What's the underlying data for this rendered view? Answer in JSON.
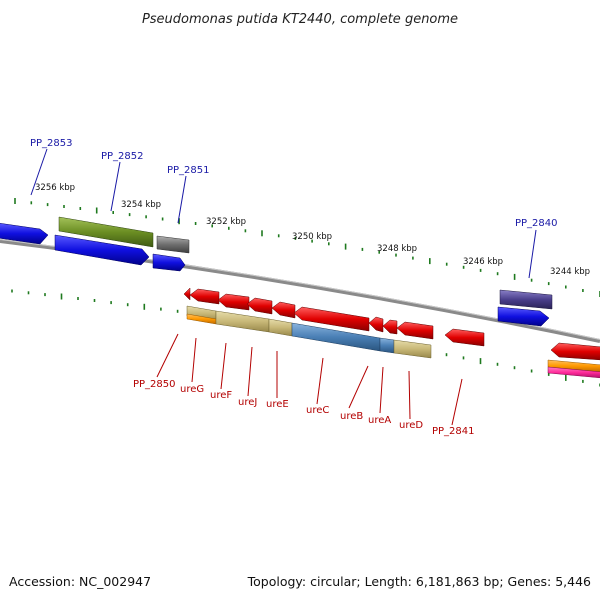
{
  "title": "Pseudomonas putida KT2440, complete genome",
  "footer": {
    "accession": "Accession: NC_002947",
    "summary": "Topology: circular; Length: 6,181,863 bp; Genes: 5,446"
  },
  "ruler_labels": [
    "3256 kbp",
    "3254 kbp",
    "3252 kbp",
    "3250 kbp",
    "3248 kbp",
    "3246 kbp",
    "3244 kbp"
  ],
  "gene_labels_top": [
    "PP_2853",
    "PP_2852",
    "PP_2851",
    "PP_2840"
  ],
  "gene_labels_bottom": [
    "PP_2850",
    "ureG",
    "ureF",
    "ureJ",
    "ureE",
    "ureC",
    "ureB",
    "ureA",
    "ureD",
    "PP_2841"
  ],
  "colors": {
    "backbone": "#8a8a8a",
    "tick": "#1f7a1f",
    "forward_gene": "#1010e0",
    "reverse_gene": "#e00000",
    "olive_feature": "#6b8e23",
    "gray_feature": "#6f6f6f",
    "purple_feature": "#4a3f8c",
    "khaki_feature": "#c8b878",
    "steelblue_feature": "#4a7fb5",
    "orange_feature": "#ff9900",
    "pink_feature": "#ff2a9a",
    "label_blue": "#1a1aa6",
    "label_red": "#b30000"
  }
}
